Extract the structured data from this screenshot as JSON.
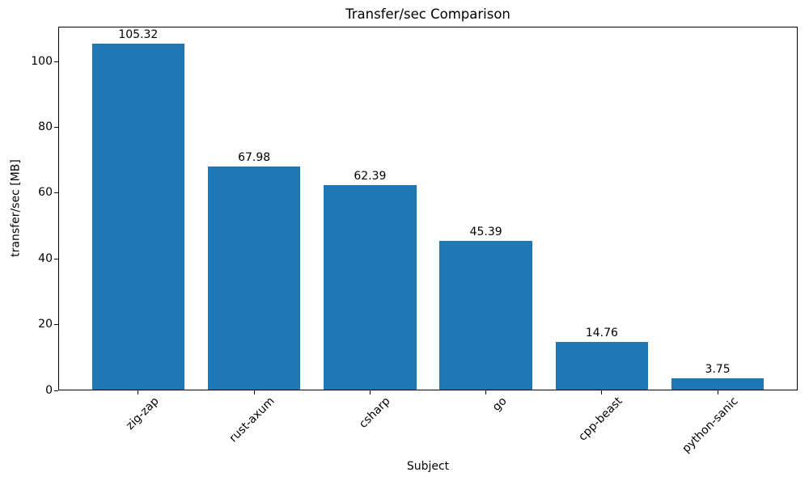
{
  "chart_data": {
    "type": "bar",
    "title": "Transfer/sec Comparison",
    "xlabel": "Subject",
    "ylabel": "transfer/sec [MB]",
    "categories": [
      "zig-zap",
      "rust-axum",
      "csharp",
      "go",
      "cpp-beast",
      "python-sanic"
    ],
    "values": [
      105.32,
      67.98,
      62.39,
      45.39,
      14.76,
      3.75
    ],
    "bar_labels": [
      "105.32",
      "67.98",
      "62.39",
      "45.39",
      "14.76",
      "3.75"
    ],
    "yticks": [
      0,
      20,
      40,
      60,
      80,
      100
    ],
    "ylim": [
      0,
      110.6
    ],
    "bar_color": "#1f77b4",
    "text_color": "#000000",
    "x_tick_label_rotation_deg": 45,
    "bar_relative_width": 0.8,
    "grid": false,
    "legend": null
  }
}
